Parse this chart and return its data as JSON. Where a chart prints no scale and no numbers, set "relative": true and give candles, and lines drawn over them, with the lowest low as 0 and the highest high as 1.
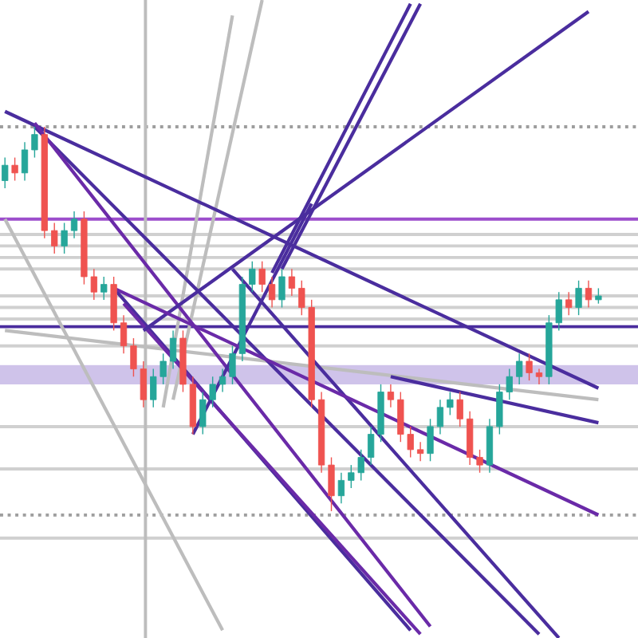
{
  "chart_data": {
    "type": "candlestick",
    "relative": true,
    "tick_labels": false,
    "categories": [
      null,
      null,
      null,
      null,
      null,
      null,
      null,
      null,
      null,
      null,
      null,
      null,
      null,
      null,
      null,
      null,
      null,
      null,
      null,
      null,
      null,
      null,
      null,
      null,
      null,
      null,
      null,
      null,
      null,
      null,
      null,
      null,
      null,
      null,
      null,
      null,
      null,
      null,
      null,
      null,
      null,
      null,
      null,
      null,
      null,
      null,
      null,
      null,
      null,
      null,
      null,
      null,
      null,
      null,
      null,
      null,
      null,
      null,
      null,
      null,
      null
    ],
    "ohlc": [
      [
        0.86,
        0.92,
        0.84,
        0.9
      ],
      [
        0.9,
        0.92,
        0.86,
        0.88
      ],
      [
        0.88,
        0.96,
        0.86,
        0.94
      ],
      [
        0.94,
        1.0,
        0.92,
        0.98
      ],
      [
        0.98,
        1.0,
        0.71,
        0.73
      ],
      [
        0.73,
        0.75,
        0.67,
        0.69
      ],
      [
        0.69,
        0.75,
        0.67,
        0.73
      ],
      [
        0.73,
        0.78,
        0.71,
        0.76
      ],
      [
        0.76,
        0.78,
        0.59,
        0.61
      ],
      [
        0.61,
        0.63,
        0.55,
        0.57
      ],
      [
        0.57,
        0.61,
        0.55,
        0.59
      ],
      [
        0.59,
        0.61,
        0.47,
        0.49
      ],
      [
        0.49,
        0.51,
        0.41,
        0.43
      ],
      [
        0.43,
        0.45,
        0.35,
        0.37
      ],
      [
        0.37,
        0.39,
        0.27,
        0.29
      ],
      [
        0.29,
        0.37,
        0.27,
        0.35
      ],
      [
        0.35,
        0.41,
        0.33,
        0.39
      ],
      [
        0.39,
        0.47,
        0.37,
        0.45
      ],
      [
        0.45,
        0.47,
        0.31,
        0.33
      ],
      [
        0.33,
        0.35,
        0.2,
        0.22
      ],
      [
        0.22,
        0.31,
        0.2,
        0.29
      ],
      [
        0.29,
        0.35,
        0.27,
        0.33
      ],
      [
        0.33,
        0.37,
        0.31,
        0.35
      ],
      [
        0.35,
        0.43,
        0.33,
        0.41
      ],
      [
        0.41,
        0.61,
        0.39,
        0.59
      ],
      [
        0.59,
        0.65,
        0.57,
        0.63
      ],
      [
        0.63,
        0.65,
        0.57,
        0.59
      ],
      [
        0.59,
        0.61,
        0.53,
        0.55
      ],
      [
        0.55,
        0.63,
        0.53,
        0.61
      ],
      [
        0.61,
        0.63,
        0.56,
        0.58
      ],
      [
        0.58,
        0.6,
        0.51,
        0.53
      ],
      [
        0.53,
        0.55,
        0.27,
        0.29
      ],
      [
        0.29,
        0.31,
        0.1,
        0.12
      ],
      [
        0.12,
        0.14,
        0.0,
        0.04
      ],
      [
        0.04,
        0.1,
        0.02,
        0.08
      ],
      [
        0.08,
        0.12,
        0.06,
        0.1
      ],
      [
        0.1,
        0.16,
        0.08,
        0.14
      ],
      [
        0.14,
        0.22,
        0.12,
        0.2
      ],
      [
        0.2,
        0.33,
        0.18,
        0.31
      ],
      [
        0.31,
        0.33,
        0.27,
        0.29
      ],
      [
        0.29,
        0.31,
        0.18,
        0.2
      ],
      [
        0.2,
        0.22,
        0.14,
        0.16
      ],
      [
        0.16,
        0.18,
        0.13,
        0.15
      ],
      [
        0.15,
        0.24,
        0.13,
        0.22
      ],
      [
        0.22,
        0.29,
        0.2,
        0.27
      ],
      [
        0.27,
        0.31,
        0.25,
        0.29
      ],
      [
        0.29,
        0.31,
        0.22,
        0.24
      ],
      [
        0.24,
        0.26,
        0.12,
        0.14
      ],
      [
        0.14,
        0.16,
        0.1,
        0.12
      ],
      [
        0.12,
        0.24,
        0.1,
        0.22
      ],
      [
        0.22,
        0.33,
        0.2,
        0.31
      ],
      [
        0.31,
        0.37,
        0.29,
        0.35
      ],
      [
        0.35,
        0.41,
        0.33,
        0.39
      ],
      [
        0.39,
        0.41,
        0.34,
        0.36
      ],
      [
        0.36,
        0.37,
        0.33,
        0.35
      ],
      [
        0.35,
        0.51,
        0.33,
        0.49
      ],
      [
        0.49,
        0.57,
        0.47,
        0.55
      ],
      [
        0.55,
        0.57,
        0.51,
        0.53
      ],
      [
        0.53,
        0.6,
        0.51,
        0.58
      ],
      [
        0.58,
        0.6,
        0.53,
        0.55
      ],
      [
        0.55,
        0.58,
        0.54,
        0.56
      ]
    ],
    "colors": [
      "#26a69a",
      "#ef5350",
      "#26a69a",
      "#26a69a",
      "#ef5350",
      "#ef5350",
      "#26a69a",
      "#26a69a",
      "#ef5350",
      "#ef5350",
      "#26a69a",
      "#ef5350",
      "#ef5350",
      "#ef5350",
      "#ef5350",
      "#26a69a",
      "#26a69a",
      "#26a69a",
      "#ef5350",
      "#ef5350",
      "#26a69a",
      "#26a69a",
      "#26a69a",
      "#26a69a",
      "#26a69a",
      "#26a69a",
      "#ef5350",
      "#ef5350",
      "#26a69a",
      "#ef5350",
      "#ef5350",
      "#ef5350",
      "#ef5350",
      "#ef5350",
      "#26a69a",
      "#26a69a",
      "#26a69a",
      "#26a69a",
      "#26a69a",
      "#ef5350",
      "#ef5350",
      "#ef5350",
      "#ef5350",
      "#26a69a",
      "#26a69a",
      "#26a69a",
      "#ef5350",
      "#ef5350",
      "#ef5350",
      "#26a69a",
      "#26a69a",
      "#26a69a",
      "#26a69a",
      "#ef5350",
      "#ef5350",
      "#26a69a",
      "#26a69a",
      "#ef5350",
      "#26a69a",
      "#ef5350",
      "#26a69a"
    ],
    "series": [
      {
        "type": "line",
        "color": "#bdbdbd",
        "values": [
          0.76,
          null,
          null,
          null,
          null,
          null,
          null,
          null,
          null,
          null,
          null,
          null,
          null,
          null,
          null,
          null,
          null,
          null,
          null,
          null,
          null,
          null,
          -0.31,
          null,
          null,
          null,
          null,
          null,
          null,
          null,
          null,
          null,
          null,
          null,
          null,
          null,
          null,
          null,
          null,
          null,
          null,
          null,
          null,
          null,
          null,
          null,
          null,
          null,
          null,
          null,
          null,
          null,
          null,
          null,
          null,
          null,
          null,
          null,
          null,
          null,
          null
        ]
      },
      {
        "type": "line",
        "color": "#bdbdbd",
        "values": [
          null,
          null,
          null,
          null,
          null,
          null,
          null,
          null,
          null,
          null,
          null,
          null,
          null,
          null,
          null,
          null,
          0.27,
          null,
          null,
          null,
          null,
          null,
          null,
          1.29,
          null,
          null,
          null,
          null,
          null,
          null,
          null,
          null,
          null,
          null,
          null,
          null,
          null,
          null,
          null,
          null,
          null,
          null,
          null,
          null,
          null,
          null,
          null,
          null,
          null,
          null,
          null,
          null,
          null,
          null,
          null,
          null,
          null,
          null,
          null,
          null,
          null
        ]
      },
      {
        "type": "line",
        "color": "#bdbdbd",
        "values": [
          null,
          null,
          null,
          null,
          null,
          null,
          null,
          null,
          null,
          null,
          null,
          null,
          null,
          null,
          null,
          null,
          null,
          0.29,
          null,
          null,
          null,
          null,
          null,
          null,
          null,
          null,
          1.33,
          null,
          null,
          null,
          null,
          null,
          null,
          null,
          null,
          null,
          null,
          null,
          null,
          null,
          null,
          null,
          null,
          null,
          null,
          null,
          null,
          null,
          null,
          null,
          null,
          null,
          null,
          null,
          null,
          null,
          null,
          null,
          null,
          null,
          null
        ]
      },
      {
        "type": "line",
        "color": "#bdbdbd",
        "values": [
          0.47,
          null,
          null,
          null,
          null,
          null,
          null,
          null,
          null,
          null,
          null,
          null,
          null,
          null,
          null,
          null,
          null,
          null,
          null,
          null,
          null,
          null,
          null,
          null,
          null,
          null,
          null,
          null,
          null,
          null,
          null,
          null,
          null,
          null,
          null,
          null,
          null,
          null,
          null,
          null,
          null,
          null,
          null,
          null,
          null,
          null,
          null,
          null,
          null,
          null,
          null,
          null,
          null,
          null,
          null,
          null,
          null,
          null,
          null,
          null,
          0.29
        ]
      },
      {
        "type": "line",
        "color": "#4a2d9e",
        "values": [
          1.04,
          null,
          null,
          null,
          null,
          null,
          null,
          null,
          null,
          null,
          null,
          null,
          null,
          null,
          null,
          null,
          null,
          null,
          null,
          null,
          null,
          null,
          null,
          null,
          null,
          null,
          null,
          null,
          null,
          null,
          null,
          null,
          null,
          null,
          null,
          null,
          null,
          null,
          null,
          null,
          null,
          null,
          null,
          null,
          null,
          null,
          null,
          null,
          null,
          null,
          null,
          null,
          null,
          null,
          null,
          null,
          null,
          null,
          null,
          null,
          0.32
        ]
      },
      {
        "type": "line",
        "color": "#4a2d9e",
        "values": [
          null,
          null,
          null,
          1.0,
          null,
          null,
          null,
          null,
          null,
          null,
          null,
          null,
          null,
          null,
          null,
          null,
          null,
          null,
          null,
          null,
          null,
          null,
          null,
          null,
          null,
          null,
          null,
          null,
          null,
          null,
          null,
          null,
          null,
          null,
          null,
          null,
          null,
          null,
          null,
          null,
          null,
          null,
          null,
          null,
          null,
          null,
          null,
          null,
          null,
          null,
          null,
          null,
          null,
          null,
          -0.32,
          null,
          null,
          null,
          null,
          null,
          null
        ]
      },
      {
        "type": "line",
        "color": "#6a2aa8",
        "values": [
          null,
          null,
          null,
          1.01,
          null,
          null,
          null,
          null,
          null,
          null,
          null,
          null,
          null,
          null,
          null,
          null,
          null,
          null,
          null,
          null,
          null,
          null,
          null,
          null,
          null,
          null,
          null,
          null,
          null,
          null,
          null,
          null,
          null,
          null,
          null,
          null,
          null,
          null,
          null,
          null,
          null,
          null,
          null,
          -0.3,
          null,
          null,
          null,
          null,
          null,
          null,
          null,
          null,
          null,
          null,
          null,
          null,
          null,
          null,
          null,
          null,
          null
        ]
      },
      {
        "type": "line",
        "color": "#4a2d9e",
        "values": [
          null,
          null,
          null,
          null,
          null,
          null,
          null,
          null,
          null,
          null,
          null,
          0.58,
          null,
          null,
          null,
          null,
          null,
          null,
          null,
          null,
          null,
          null,
          null,
          null,
          null,
          null,
          null,
          null,
          null,
          null,
          null,
          null,
          null,
          null,
          null,
          null,
          null,
          null,
          null,
          null,
          null,
          -0.31,
          null,
          null,
          null,
          null,
          null,
          null,
          null,
          null,
          null,
          null,
          null,
          null,
          null,
          null,
          null,
          null,
          null,
          null,
          null
        ]
      },
      {
        "type": "line",
        "color": "#6a2aa8",
        "values": [
          null,
          null,
          null,
          null,
          null,
          null,
          null,
          null,
          null,
          null,
          null,
          null,
          0.54,
          null,
          null,
          null,
          null,
          null,
          null,
          null,
          null,
          null,
          null,
          null,
          null,
          null,
          null,
          null,
          null,
          null,
          null,
          null,
          null,
          null,
          null,
          null,
          null,
          null,
          null,
          null,
          null,
          null,
          -0.32,
          null,
          null,
          null,
          null,
          null,
          null,
          null,
          null,
          null,
          null,
          null,
          null,
          null,
          null,
          null,
          null,
          null,
          null
        ]
      },
      {
        "type": "line",
        "color": "#4a2d9e",
        "values": [
          null,
          null,
          null,
          null,
          null,
          null,
          null,
          null,
          null,
          null,
          null,
          null,
          null,
          null,
          0.47,
          null,
          null,
          null,
          null,
          null,
          null,
          null,
          null,
          null,
          null,
          null,
          null,
          null,
          null,
          null,
          null,
          null,
          null,
          null,
          null,
          null,
          null,
          null,
          null,
          null,
          null,
          null,
          null,
          null,
          null,
          null,
          null,
          null,
          null,
          null,
          null,
          null,
          null,
          null,
          null,
          null,
          null,
          null,
          null,
          1.3,
          null
        ]
      },
      {
        "type": "line",
        "color": "#4a2d9e",
        "values": [
          null,
          null,
          null,
          null,
          null,
          null,
          null,
          null,
          null,
          null,
          null,
          null,
          null,
          null,
          null,
          null,
          null,
          null,
          null,
          null,
          null,
          null,
          null,
          null,
          null,
          null,
          null,
          null,
          0.63,
          null,
          null,
          null,
          null,
          null,
          null,
          null,
          null,
          null,
          null,
          null,
          null,
          null,
          1.32,
          null,
          null,
          null,
          null,
          null,
          null,
          null,
          null,
          null,
          null,
          null,
          null,
          null,
          null,
          null,
          null,
          null,
          null
        ]
      },
      {
        "type": "line",
        "color": "#4a2d9e",
        "values": [
          null,
          null,
          null,
          null,
          null,
          null,
          null,
          null,
          null,
          null,
          null,
          null,
          null,
          null,
          null,
          null,
          null,
          null,
          null,
          null,
          null,
          null,
          null,
          null,
          null,
          null,
          null,
          0.62,
          null,
          null,
          null,
          null,
          null,
          null,
          null,
          null,
          null,
          null,
          null,
          null,
          null,
          1.32,
          null,
          null,
          null,
          null,
          null,
          null,
          null,
          null,
          null,
          null,
          null,
          null,
          null,
          null,
          null,
          null,
          null,
          null,
          null
        ]
      },
      {
        "type": "line",
        "color": "#4a2d9e",
        "values": [
          null,
          null,
          null,
          null,
          null,
          null,
          null,
          null,
          null,
          null,
          null,
          null,
          null,
          null,
          null,
          null,
          null,
          null,
          null,
          0.2,
          null,
          null,
          null,
          null,
          null,
          null,
          null,
          null,
          null,
          null,
          null,
          0.8,
          null,
          null,
          null,
          null,
          null,
          null,
          null,
          null,
          null,
          null,
          null,
          null,
          null,
          null,
          null,
          null,
          null,
          null,
          null,
          null,
          null,
          null,
          null,
          null,
          null,
          null,
          null,
          null,
          null
        ]
      },
      {
        "type": "line",
        "color": "#4a2d9e",
        "values": [
          null,
          null,
          null,
          null,
          null,
          null,
          null,
          null,
          null,
          null,
          null,
          null,
          null,
          null,
          null,
          null,
          null,
          null,
          null,
          null,
          null,
          null,
          null,
          0.63,
          null,
          null,
          null,
          null,
          null,
          null,
          null,
          null,
          null,
          null,
          null,
          null,
          null,
          null,
          null,
          null,
          null,
          null,
          null,
          null,
          null,
          null,
          null,
          null,
          null,
          null,
          null,
          null,
          null,
          null,
          null,
          null,
          -0.33,
          null,
          null,
          null,
          null
        ]
      },
      {
        "type": "line",
        "color": "#6a2aa8",
        "values": [
          null,
          null,
          null,
          null,
          null,
          null,
          null,
          null,
          null,
          null,
          null,
          0.58,
          null,
          null,
          null,
          null,
          null,
          null,
          null,
          null,
          null,
          null,
          null,
          null,
          null,
          null,
          null,
          null,
          null,
          null,
          null,
          null,
          null,
          null,
          null,
          null,
          null,
          null,
          null,
          null,
          null,
          null,
          null,
          null,
          null,
          null,
          null,
          null,
          null,
          null,
          null,
          null,
          null,
          null,
          null,
          null,
          null,
          null,
          null,
          null,
          -0.01
        ]
      },
      {
        "type": "line",
        "color": "#4a2d9e",
        "values": [
          null,
          null,
          null,
          null,
          null,
          null,
          null,
          null,
          null,
          null,
          null,
          null,
          null,
          null,
          null,
          null,
          null,
          null,
          null,
          null,
          null,
          null,
          null,
          null,
          null,
          null,
          null,
          null,
          null,
          null,
          null,
          null,
          null,
          null,
          null,
          null,
          null,
          null,
          null,
          0.35,
          null,
          null,
          null,
          null,
          null,
          null,
          null,
          null,
          null,
          null,
          null,
          null,
          null,
          null,
          null,
          null,
          null,
          null,
          null,
          null,
          0.23
        ]
      }
    ],
    "ref_lines": [
      {
        "axis": "y",
        "value": 1.0,
        "color": "#9e9e9e",
        "line_style": "dotted"
      },
      {
        "axis": "y",
        "value": 0.76,
        "color": "#9c4dcc"
      },
      {
        "axis": "y",
        "value": 0.72,
        "color": "#d0d0d0"
      },
      {
        "axis": "y",
        "value": 0.69,
        "color": "#d0d0d0"
      },
      {
        "axis": "y",
        "value": 0.66,
        "color": "#d0d0d0"
      },
      {
        "axis": "y",
        "value": 0.63,
        "color": "#d0d0d0"
      },
      {
        "axis": "y",
        "value": 0.56,
        "color": "#d0d0d0"
      },
      {
        "axis": "y",
        "value": 0.53,
        "color": "#d0d0d0"
      },
      {
        "axis": "y",
        "value": 0.5,
        "color": "#d0d0d0"
      },
      {
        "axis": "y",
        "value": 0.48,
        "color": "#4a2d9e"
      },
      {
        "axis": "y",
        "value": 0.43,
        "color": "#d0d0d0"
      },
      {
        "axis": "y",
        "value": 0.22,
        "color": "#d0d0d0"
      },
      {
        "axis": "y",
        "value": 0.11,
        "color": "#d0d0d0"
      },
      {
        "axis": "y",
        "value": -0.01,
        "color": "#9e9e9e",
        "line_style": "dotted"
      },
      {
        "axis": "y",
        "value": -0.07,
        "color": "#d0d0d0"
      }
    ],
    "bands": [
      {
        "axis": "y",
        "from": 0.33,
        "to": 0.38,
        "color": "#cfc3ea"
      }
    ]
  }
}
